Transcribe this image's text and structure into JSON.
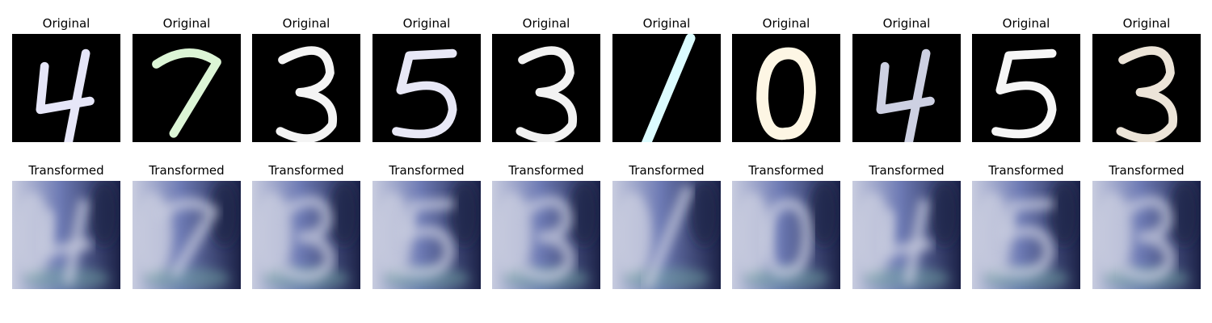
{
  "figure": {
    "background": "#ffffff",
    "original_label": "Original",
    "transformed_label": "Transformed"
  },
  "samples": [
    {
      "digit": "4",
      "stroke_color": "#e6e6f8"
    },
    {
      "digit": "7",
      "stroke_color": "#dcf5d6"
    },
    {
      "digit": "3",
      "stroke_color": "#f4f4f4"
    },
    {
      "digit": "5",
      "stroke_color": "#e8e8f6"
    },
    {
      "digit": "3",
      "stroke_color": "#f2f2f2"
    },
    {
      "digit": "1",
      "stroke_color": "#dcfcff"
    },
    {
      "digit": "0",
      "stroke_color": "#fdf6e4"
    },
    {
      "digit": "4",
      "stroke_color": "#cdd0e2"
    },
    {
      "digit": "5",
      "stroke_color": "#f6f6f6"
    },
    {
      "digit": "3",
      "stroke_color": "#ece4d8"
    }
  ],
  "transformed_style": {
    "light": "#c8ccdf",
    "mid": "#6c79b3",
    "dark": "#1c2247",
    "teal": "#6fa3a0"
  }
}
